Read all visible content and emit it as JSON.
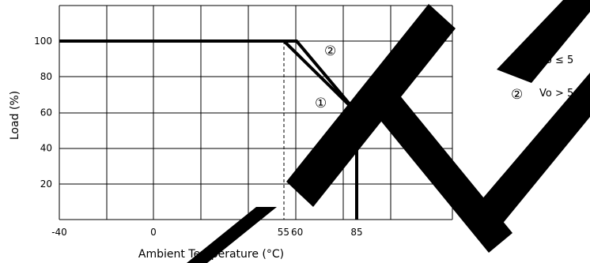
{
  "chart_data": {
    "type": "line",
    "xlabel": "Ambient Temperature (°C)",
    "ylabel": "Load (%)",
    "x_tick_labels": [
      {
        "value": -40,
        "label": "-40"
      },
      {
        "value": 0,
        "label": "0"
      },
      {
        "value": 55,
        "label": "55"
      },
      {
        "value": 60,
        "label": "60"
      },
      {
        "value": 85,
        "label": "85"
      }
    ],
    "y_tick_labels": [
      {
        "value": 20,
        "label": "20"
      },
      {
        "value": 40,
        "label": "40"
      },
      {
        "value": 60,
        "label": "60"
      },
      {
        "value": 80,
        "label": "80"
      },
      {
        "value": 100,
        "label": "100"
      }
    ],
    "grid": true,
    "series": [
      {
        "name": "Vo ≤ 5",
        "marker": "①",
        "points": [
          [
            -40,
            100
          ],
          [
            55,
            100
          ],
          [
            85,
            60
          ],
          [
            85,
            0
          ]
        ]
      },
      {
        "name": "Vo > 5",
        "marker": "②",
        "points": [
          [
            -40,
            100
          ],
          [
            60,
            100
          ],
          [
            85,
            60
          ],
          [
            85,
            0
          ]
        ]
      }
    ],
    "reference_lines": [
      {
        "x": 55,
        "style": "dashed"
      }
    ],
    "legend_placement": "right"
  },
  "watermark": "TTN",
  "colors": {
    "line": "#000000",
    "grid": "#000000",
    "watermark": "#000000"
  }
}
